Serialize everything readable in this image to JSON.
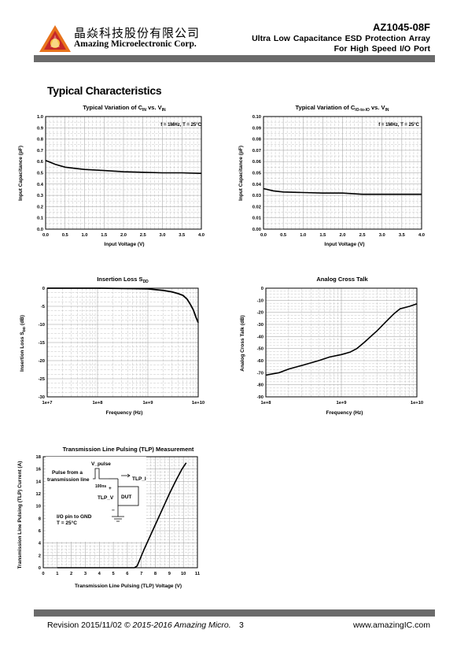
{
  "header": {
    "company_cn": "晶焱科技股份有限公司",
    "company_en": "Amazing Microelectronic Corp.",
    "part_number": "AZ1045-08F",
    "subtitle_line1": "Ultra Low Capacitance ESD Protection Array",
    "subtitle_line2": "For High Speed I/O Port"
  },
  "section_title": "Typical Characteristics",
  "footer": {
    "revision": "Revision 2015/11/02",
    "copyright": "© 2015-2016 Amazing Micro.",
    "page_number": "3",
    "website": "www.amazingIC.com"
  },
  "chart_data": [
    {
      "type": "line",
      "title_main": "Typical Variation of C",
      "title_sub1": "IN",
      "title_mid": " vs. V",
      "title_sub2": "IN",
      "annotation": "f = 1MHz, T = 25°C",
      "xlabel": "Input Voltage (V)",
      "ylabel": "Input Capacitance (pF)",
      "xlim": [
        0,
        4
      ],
      "ylim": [
        0,
        1
      ],
      "xticks": [
        "0.0",
        "0.5",
        "1.0",
        "1.5",
        "2.0",
        "2.5",
        "3.0",
        "3.5",
        "4.0"
      ],
      "yticks": [
        "0.0",
        "0.1",
        "0.2",
        "0.3",
        "0.4",
        "0.5",
        "0.6",
        "0.7",
        "0.8",
        "0.9",
        "1.0"
      ],
      "grid": true,
      "x": [
        0,
        0.25,
        0.5,
        0.75,
        1.0,
        1.5,
        2.0,
        2.5,
        3.0,
        3.5,
        4.0
      ],
      "y": [
        0.61,
        0.575,
        0.55,
        0.54,
        0.53,
        0.52,
        0.51,
        0.505,
        0.5,
        0.5,
        0.495
      ]
    },
    {
      "type": "line",
      "title_main": "Typical Variation of C",
      "title_sub1": "IO-to-IO",
      "title_mid": " vs. V",
      "title_sub2": "IN",
      "annotation": "f = 1MHz, T = 25°C",
      "xlabel": "Input Voltage (V)",
      "ylabel": "Input Capacitance (pF)",
      "xlim": [
        0,
        4
      ],
      "ylim": [
        0,
        0.1
      ],
      "xticks": [
        "0.0",
        "0.5",
        "1.0",
        "1.5",
        "2.0",
        "2.5",
        "3.0",
        "3.5",
        "4.0"
      ],
      "yticks": [
        "0.00",
        "0.01",
        "0.02",
        "0.03",
        "0.04",
        "0.05",
        "0.06",
        "0.07",
        "0.08",
        "0.09",
        "0.10"
      ],
      "grid": true,
      "x": [
        0,
        0.25,
        0.5,
        1.0,
        1.5,
        2.0,
        2.5,
        3.0,
        3.5,
        4.0
      ],
      "y": [
        0.036,
        0.034,
        0.033,
        0.0325,
        0.032,
        0.032,
        0.031,
        0.031,
        0.031,
        0.031
      ]
    },
    {
      "type": "line",
      "title_main": "Insertion Loss S",
      "title_sub1": "DD",
      "xlabel": "Frequency (Hz)",
      "ylabel_main": "Insertion Loss S",
      "ylabel_sub": "DD",
      "ylabel_unit": " (dB)",
      "log_x": true,
      "xlim": [
        10000000,
        10000000000
      ],
      "ylim": [
        -30,
        0
      ],
      "xticks": [
        "1e+7",
        "1e+8",
        "1e+9",
        "1e+10"
      ],
      "yticks": [
        "0",
        "-5",
        "-10",
        "-15",
        "-20",
        "-25",
        "-30"
      ],
      "grid": true,
      "x": [
        10000000,
        100000000,
        500000000,
        1000000000,
        2000000000,
        3000000000,
        4000000000,
        5000000000,
        6000000000,
        7000000000,
        8000000000,
        9000000000,
        10000000000
      ],
      "y": [
        0,
        0,
        -0.1,
        -0.2,
        -0.6,
        -1.0,
        -1.5,
        -2.0,
        -3.0,
        -4.5,
        -6.0,
        -8.0,
        -9.5
      ]
    },
    {
      "type": "line",
      "title_main": "Analog Cross Talk",
      "xlabel": "Frequency (Hz)",
      "ylabel": "Analog Cross Talk (dB)",
      "log_x": true,
      "xlim": [
        100000000,
        10000000000
      ],
      "ylim": [
        -90,
        0
      ],
      "xticks": [
        "1e+8",
        "1e+9",
        "1e+10"
      ],
      "yticks": [
        "0",
        "-10",
        "-20",
        "-30",
        "-40",
        "-50",
        "-60",
        "-70",
        "-80",
        "-90"
      ],
      "grid": true,
      "x": [
        100000000,
        150000000,
        200000000,
        300000000,
        500000000,
        700000000,
        1000000000,
        1300000000,
        1600000000,
        2000000000,
        3000000000,
        4000000000,
        5000000000,
        6000000000,
        7000000000,
        8000000000,
        10000000000
      ],
      "y": [
        -72,
        -70,
        -67,
        -64,
        -60,
        -57,
        -55,
        -53,
        -50,
        -45,
        -35,
        -27,
        -21,
        -17,
        -16,
        -15,
        -13
      ]
    },
    {
      "type": "line",
      "title_main": "Transmission Line Pulsing (TLP) Measurement",
      "xlabel": "Transmission Line Pulsing (TLP) Voltage (V)",
      "ylabel": "Transmission Line Pulsing (TLP) Current (A)",
      "xlim": [
        0,
        11
      ],
      "ylim": [
        0,
        18
      ],
      "xticks": [
        "0",
        "1",
        "2",
        "3",
        "4",
        "5",
        "6",
        "7",
        "8",
        "9",
        "10",
        "11"
      ],
      "yticks": [
        "0",
        "2",
        "4",
        "6",
        "8",
        "10",
        "12",
        "14",
        "16",
        "18"
      ],
      "grid": true,
      "x": [
        1,
        6.5,
        6.7,
        7.2,
        7.8,
        8.4,
        9.0,
        9.5,
        9.9,
        10.2
      ],
      "y": [
        0,
        0,
        0.3,
        3.0,
        6.0,
        9.0,
        12.0,
        14.3,
        16.0,
        17.0
      ],
      "inset": {
        "pulse_label": "V_pulse",
        "source_label_1": "Pulse from a",
        "source_label_2": "transmission line",
        "width_label": "100ns",
        "current_label": "TLP_I",
        "voltage_label": "TLP_V",
        "dut_label": "DUT",
        "plus_label": "+",
        "minus_label": "−",
        "condition_1": "I/O pin  to GND",
        "condition_2": "T = 25°C"
      }
    }
  ]
}
